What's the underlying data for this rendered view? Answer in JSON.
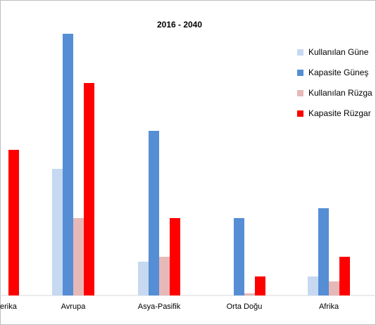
{
  "chart_data": {
    "type": "bar",
    "title": "2016 - 2040",
    "categories": [
      "Kuzey Amerika",
      "Avrupa",
      "Asya-Pasifik",
      "Orta Doğu",
      "Afrika"
    ],
    "visible_category_labels": [
      "erika",
      "Avrupa",
      "Asya-Pasifik",
      "Orta Doğu",
      "Afrika"
    ],
    "series": [
      {
        "name": "Kullanılan Güneş",
        "color": "#C6D9F1",
        "values": [
          null,
          180,
          48,
          0,
          27
        ]
      },
      {
        "name": "Kapasite Güneş",
        "color": "#558ED5",
        "values": [
          null,
          372,
          234,
          110,
          124
        ]
      },
      {
        "name": "Kullanılan Rüzgar",
        "color": "#E6B9B8",
        "values": [
          null,
          110,
          55,
          3,
          20
        ]
      },
      {
        "name": "Kapasite Rüzgar",
        "color": "#FF0000",
        "values": [
          207,
          302,
          110,
          27,
          55
        ]
      }
    ],
    "visible_legend_labels": [
      "Kullanılan Güne",
      "Kapasite Güneş",
      "Kullanılan Rüzga",
      "Kapasite Rüzgar"
    ],
    "ylim": [
      0,
      420
    ],
    "grid": false,
    "legend_position": "right",
    "xlabel": "",
    "ylabel": ""
  }
}
